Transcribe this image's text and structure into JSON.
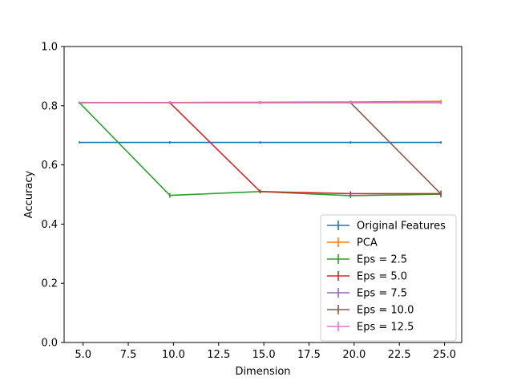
{
  "chart_data": {
    "type": "line",
    "title": "",
    "xlabel": "Dimension",
    "ylabel": "Accuracy",
    "xlim": [
      3.95,
      25.95
    ],
    "ylim": [
      0.0,
      1.0
    ],
    "x_ticks": [
      5.0,
      7.5,
      10.0,
      12.5,
      15.0,
      17.5,
      20.0,
      22.5,
      25.0
    ],
    "x_tick_labels": [
      "5.0",
      "7.5",
      "10.0",
      "12.5",
      "15.0",
      "17.5",
      "20.0",
      "22.5",
      "25.0"
    ],
    "y_ticks": [
      0.0,
      0.2,
      0.4,
      0.6,
      0.8,
      1.0
    ],
    "y_tick_labels": [
      "0.0",
      "0.2",
      "0.4",
      "0.6",
      "0.8",
      "1.0"
    ],
    "grid": false,
    "legend_position": "lower-right",
    "error_bars": true,
    "series": [
      {
        "name": "Original Features",
        "color": "#1f77b4",
        "x": [
          4.8,
          9.8,
          14.8,
          19.8,
          24.8
        ],
        "y": [
          0.676,
          0.676,
          0.676,
          0.676,
          0.676
        ],
        "err": [
          0.0,
          0.0,
          0.0,
          0.0,
          0.0
        ]
      },
      {
        "name": "PCA",
        "color": "#ff7f0e",
        "x": [
          4.8,
          9.8,
          14.8,
          19.8,
          24.8
        ],
        "y": [
          0.81,
          0.811,
          0.812,
          0.813,
          0.815
        ],
        "err": [
          0.002,
          0.002,
          0.002,
          0.002,
          0.002
        ]
      },
      {
        "name": "Eps = 2.5",
        "color": "#2ca02c",
        "x": [
          4.8,
          9.8,
          14.8,
          19.8,
          24.8
        ],
        "y": [
          0.81,
          0.497,
          0.51,
          0.496,
          0.501
        ],
        "err": [
          0.003,
          0.008,
          0.007,
          0.008,
          0.007
        ]
      },
      {
        "name": "Eps = 5.0",
        "color": "#d62728",
        "x": [
          4.8,
          9.8,
          14.8,
          19.8,
          24.8
        ],
        "y": [
          0.81,
          0.81,
          0.51,
          0.503,
          0.503
        ],
        "err": [
          0.003,
          0.003,
          0.004,
          0.008,
          0.006
        ]
      },
      {
        "name": "Eps = 7.5",
        "color": "#9467bd",
        "x": [
          4.8,
          9.8,
          14.8,
          19.8,
          24.8
        ],
        "y": [
          0.81,
          0.81,
          0.81,
          0.81,
          0.81
        ],
        "err": [
          0.002,
          0.002,
          0.002,
          0.002,
          0.002
        ]
      },
      {
        "name": "Eps = 10.0",
        "color": "#8c564b",
        "x": [
          4.8,
          9.8,
          14.8,
          19.8,
          24.8
        ],
        "y": [
          0.81,
          0.81,
          0.81,
          0.81,
          0.502
        ],
        "err": [
          0.002,
          0.002,
          0.002,
          0.002,
          0.012
        ]
      },
      {
        "name": "Eps = 12.5",
        "color": "#e377c2",
        "x": [
          4.8,
          9.8,
          14.8,
          19.8,
          24.8
        ],
        "y": [
          0.81,
          0.81,
          0.81,
          0.81,
          0.81
        ],
        "err": [
          0.002,
          0.002,
          0.002,
          0.002,
          0.002
        ]
      }
    ]
  }
}
